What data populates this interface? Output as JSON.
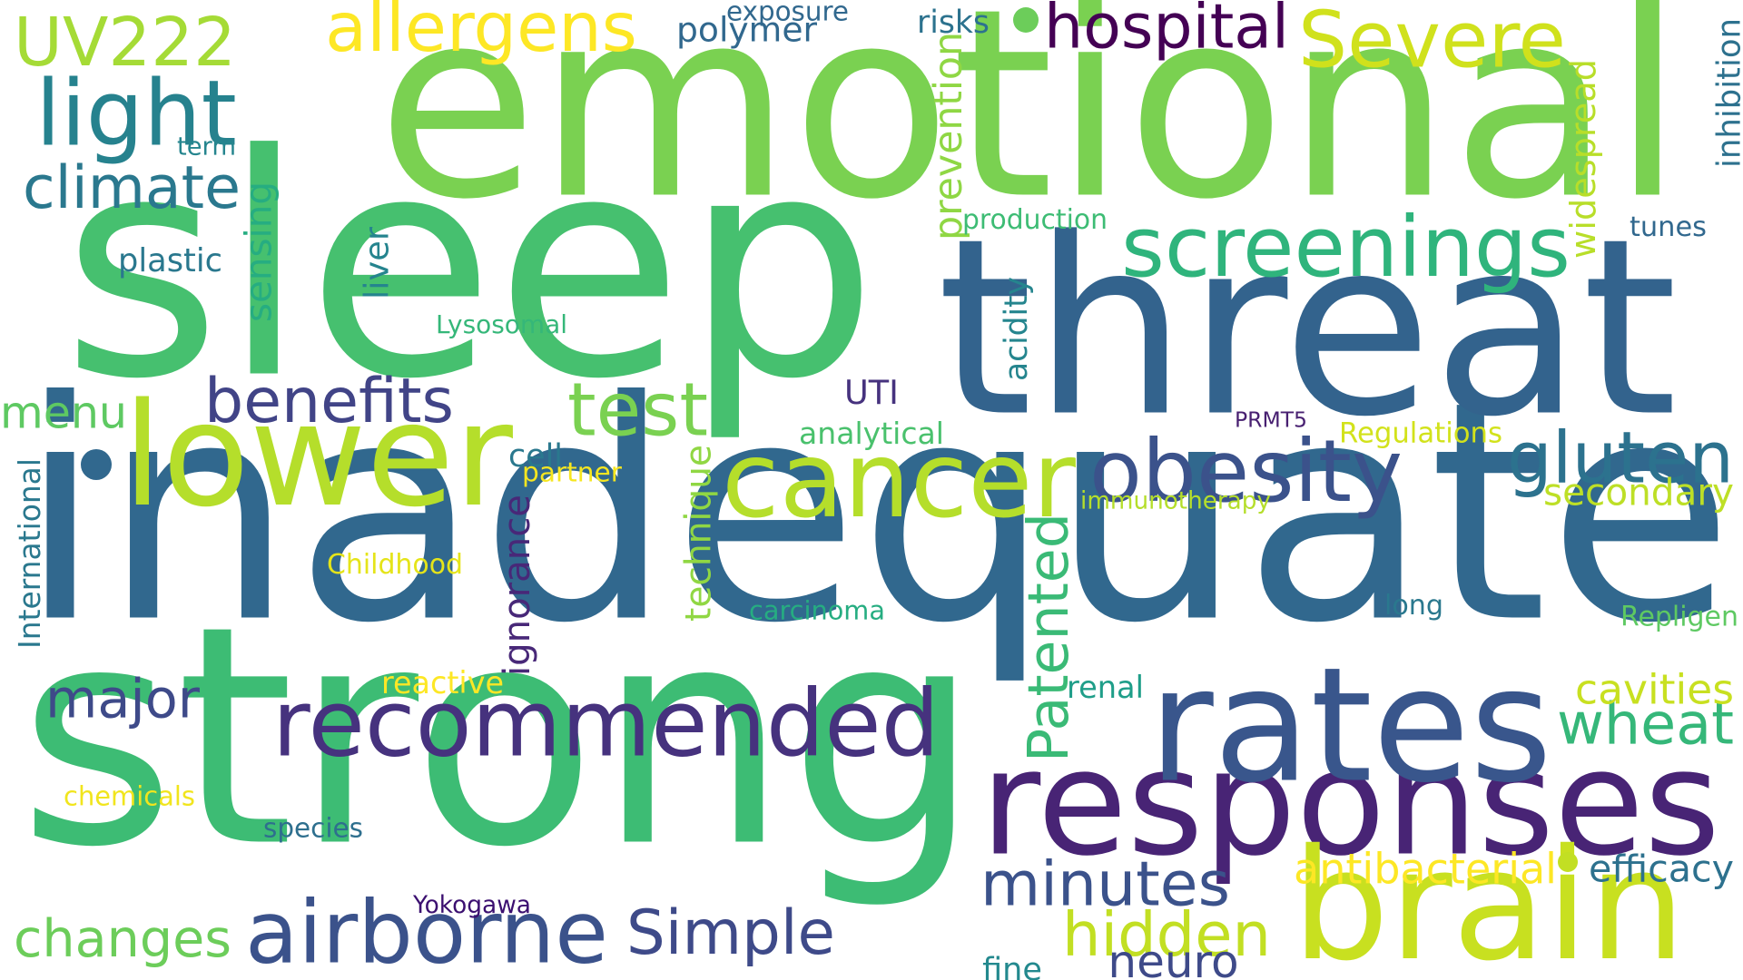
{
  "words": [
    {
      "text": "inadequate",
      "color": "#31688e"
    },
    {
      "text": "strong",
      "color": "#3dbc74"
    },
    {
      "text": "sleep",
      "color": "#46c06f"
    },
    {
      "text": "emotional",
      "color": "#7ad151"
    },
    {
      "text": "threat",
      "color": "#33638d"
    },
    {
      "text": "responses",
      "color": "#482475"
    },
    {
      "text": "rates",
      "color": "#39568c"
    },
    {
      "text": "brain",
      "color": "#c8e020"
    },
    {
      "text": "lower",
      "color": "#b5de2b"
    },
    {
      "text": "cancer",
      "color": "#b5de2b"
    },
    {
      "text": "recommended",
      "color": "#46327e"
    },
    {
      "text": "obesity",
      "color": "#3b528b"
    },
    {
      "text": "screenings",
      "color": "#2fb47c"
    },
    {
      "text": "airborne",
      "color": "#3b528b"
    },
    {
      "text": "Severe",
      "color": "#d0e11c"
    },
    {
      "text": "UV222",
      "color": "#a5db36"
    },
    {
      "text": "light",
      "color": "#26828e"
    },
    {
      "text": "minutes",
      "color": "#3b528b"
    },
    {
      "text": "wheat",
      "color": "#35b779"
    },
    {
      "text": "gluten",
      "color": "#2c728e"
    },
    {
      "text": "allergens",
      "color": "#fde725"
    },
    {
      "text": "hospital",
      "color": "#440154"
    },
    {
      "text": "benefits",
      "color": "#414487"
    },
    {
      "text": "Simple",
      "color": "#3e4a89"
    },
    {
      "text": "test",
      "color": "#7ad151"
    },
    {
      "text": "climate",
      "color": "#2a788e"
    },
    {
      "text": "changes",
      "color": "#6ccd5a"
    },
    {
      "text": "major",
      "color": "#3e4a89"
    },
    {
      "text": "hidden",
      "color": "#c2df23"
    },
    {
      "text": "menu",
      "color": "#5ec962"
    },
    {
      "text": "Patented",
      "color": "#3aba76"
    },
    {
      "text": "ignorance",
      "color": "#482878"
    },
    {
      "text": "technique",
      "color": "#90d743"
    },
    {
      "text": "cavities",
      "color": "#c8e020"
    },
    {
      "text": "antibacterial",
      "color": "#fde725"
    },
    {
      "text": "secondary",
      "color": "#bddf26"
    },
    {
      "text": "prevention",
      "color": "#8fd744"
    },
    {
      "text": "widespread",
      "color": "#b8de29"
    },
    {
      "text": "sensing",
      "color": "#26ad81"
    },
    {
      "text": "neuro",
      "color": "#3e4a89"
    },
    {
      "text": "polymer",
      "color": "#31688e"
    },
    {
      "text": "Repligen",
      "color": "#5ec962"
    },
    {
      "text": "immunotherapy",
      "color": "#b5de2b"
    },
    {
      "text": "carcinoma",
      "color": "#26ad81"
    },
    {
      "text": "efficacy",
      "color": "#2d718e"
    },
    {
      "text": "Lysosomal",
      "color": "#35b779"
    },
    {
      "text": "production",
      "color": "#3dbc74"
    },
    {
      "text": "analytical",
      "color": "#4ac16d"
    },
    {
      "text": "Regulations",
      "color": "#d2e21b"
    },
    {
      "text": "International",
      "color": "#2a788e"
    },
    {
      "text": "Childhood",
      "color": "#e5e419"
    },
    {
      "text": "chemicals",
      "color": "#f1e51d"
    },
    {
      "text": "species",
      "color": "#2e6f8e"
    },
    {
      "text": "Yokogawa",
      "color": "#3b0f70"
    },
    {
      "text": "reactive",
      "color": "#fde725"
    },
    {
      "text": "renal",
      "color": "#1f9e89"
    },
    {
      "text": "long",
      "color": "#2a788e"
    },
    {
      "text": "acidity",
      "color": "#25858e"
    },
    {
      "text": "UTI",
      "color": "#46327e"
    },
    {
      "text": "PRMT5",
      "color": "#482071"
    },
    {
      "text": "partner",
      "color": "#f6e620"
    },
    {
      "text": "cell",
      "color": "#2a788e"
    },
    {
      "text": "liver",
      "color": "#25848e"
    },
    {
      "text": "plastic",
      "color": "#2a788e"
    },
    {
      "text": "term",
      "color": "#25858e"
    },
    {
      "text": "exposure",
      "color": "#31688e"
    },
    {
      "text": "risks",
      "color": "#2c728e"
    },
    {
      "text": "tunes",
      "color": "#31688e"
    },
    {
      "text": "inhibition",
      "color": "#2d718e"
    },
    {
      "text": "fine",
      "color": "#23898e"
    }
  ],
  "dots": [
    {
      "color": "#6ccd5a"
    },
    {
      "color": "#31688e"
    },
    {
      "color": "#c2df23"
    }
  ]
}
